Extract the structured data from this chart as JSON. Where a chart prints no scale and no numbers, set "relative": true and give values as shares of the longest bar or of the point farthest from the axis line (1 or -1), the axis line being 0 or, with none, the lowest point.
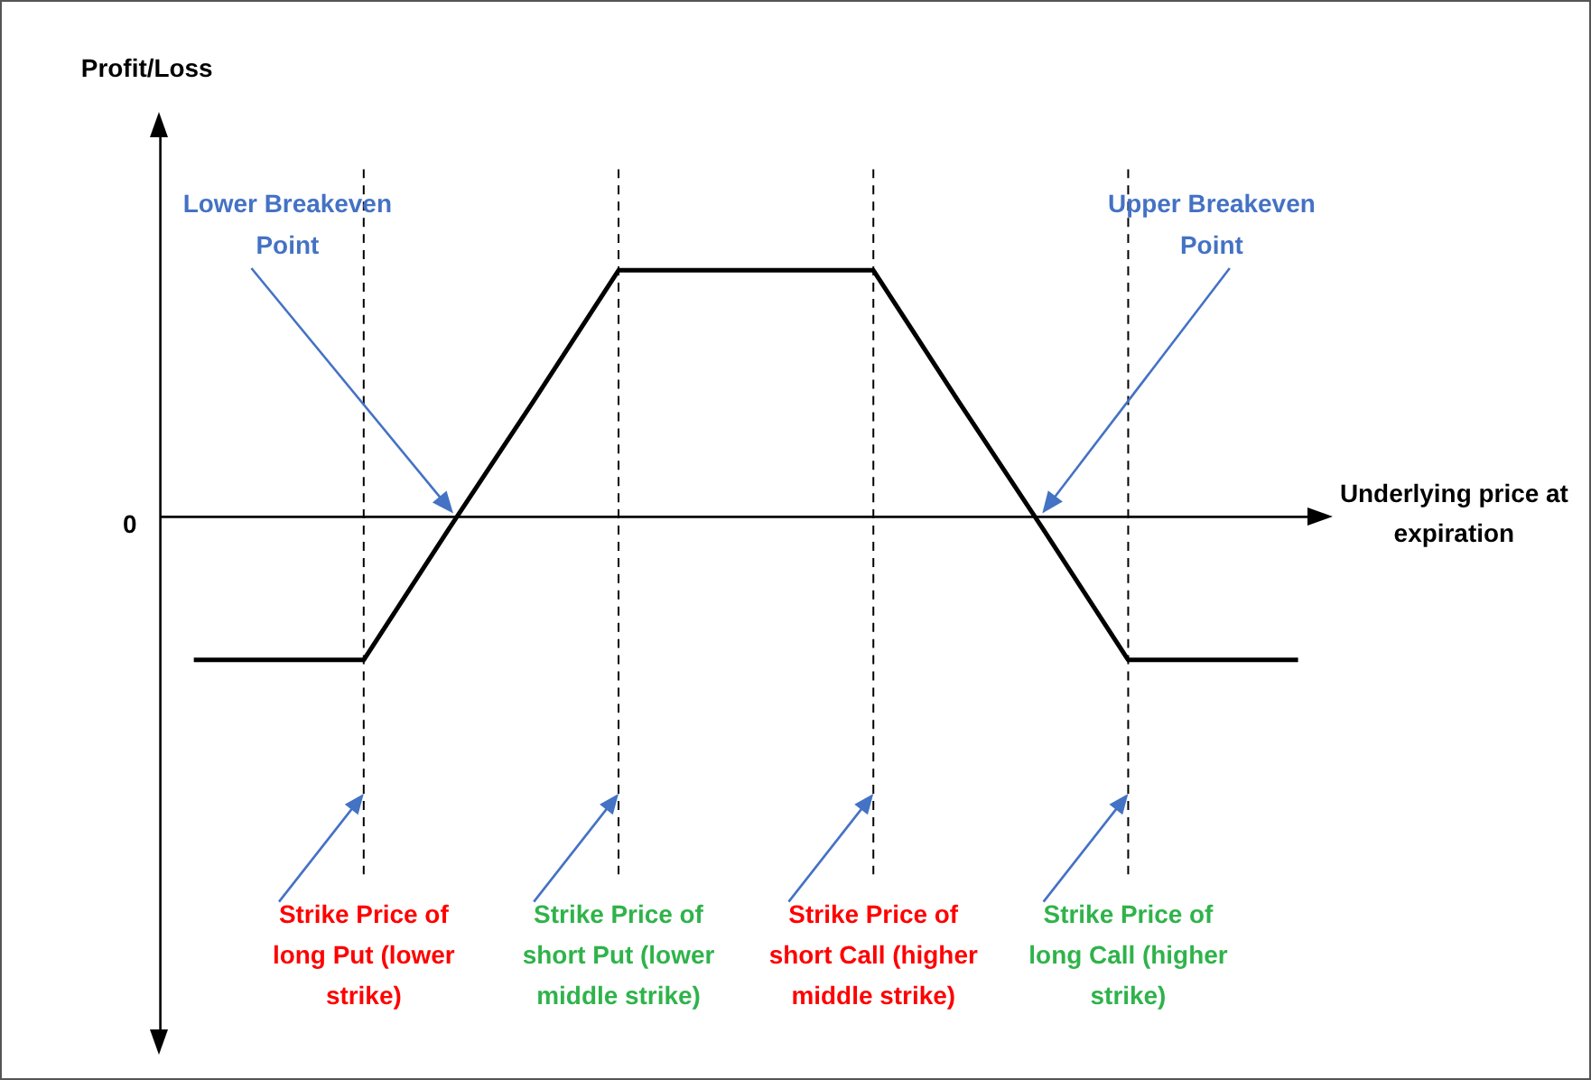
{
  "chart_data": {
    "type": "line",
    "relative": true,
    "xlabel": "Underlying price at expiration",
    "categories": [
      null,
      null,
      "Strike Price of long Put (lower strike)",
      null,
      null,
      "Strike Price of short Put (lower middle strike)",
      null,
      null,
      "Strike Price of short Call (higher middle strike)",
      null,
      null,
      "Strike Price of long Call (higher strike)",
      null,
      null
    ],
    "series": [
      {
        "color": "#000000",
        "values": [
          -0.58,
          -0.58,
          -0.58,
          -0.05,
          0.47,
          1,
          1,
          1,
          1,
          0.47,
          -0.05,
          -0.58,
          -0.58,
          -0.58
        ]
      }
    ],
    "ref_lines": [
      {
        "axis": "x",
        "value": "Strike Price of long Put (lower strike)",
        "line_style": "dashed"
      },
      {
        "axis": "x",
        "value": "Strike Price of short Put (lower middle strike)",
        "line_style": "dashed"
      },
      {
        "axis": "x",
        "value": "Strike Price of short Call (higher middle strike)",
        "line_style": "dashed"
      },
      {
        "axis": "x",
        "value": "Strike Price of long Call (higher strike)",
        "line_style": "dashed"
      }
    ],
    "annotations": [
      "Lower Breakeven Point",
      "Upper Breakeven Point",
      "0",
      "Profit/Loss"
    ],
    "marker": "none",
    "line_style": "solid",
    "grid": false,
    "legend": false
  }
}
